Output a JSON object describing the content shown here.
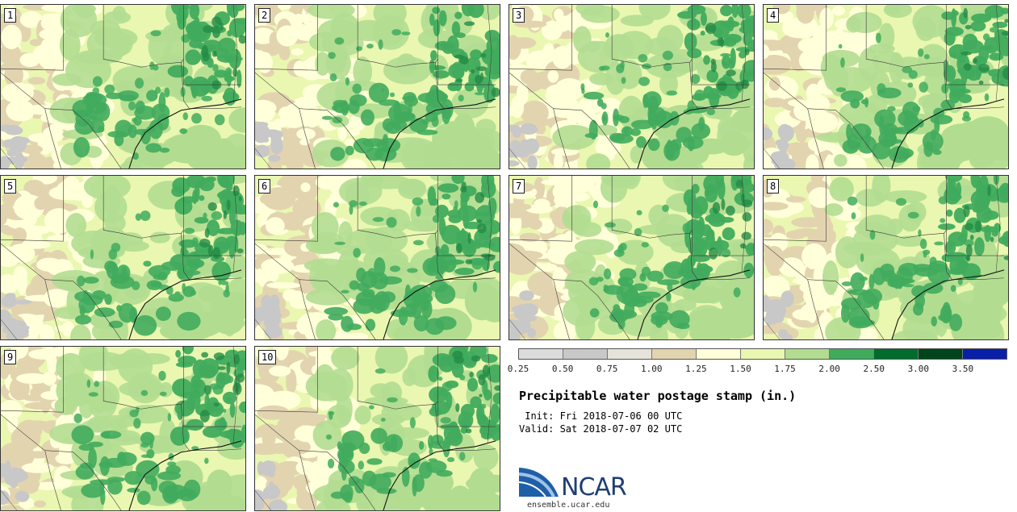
{
  "title": "Precipitable water postage stamp (in.)",
  "init_text": " Init: Fri 2018-07-06 00 UTC",
  "valid_text": "Valid: Sat 2018-07-07 02 UTC",
  "logo": {
    "name": "NCAR",
    "url": "ensemble.ucar.edu"
  },
  "members": [
    "1",
    "2",
    "3",
    "4",
    "5",
    "6",
    "7",
    "8",
    "9",
    "10"
  ],
  "legend": {
    "ticks": [
      "0.25",
      "0.50",
      "0.75",
      "1.00",
      "1.25",
      "1.50",
      "1.75",
      "2.00",
      "2.50",
      "3.00",
      "3.50"
    ],
    "colors": [
      "#dcdcdc",
      "#c8c8c8",
      "#e6e3da",
      "#e3d4b0",
      "#ffffd9",
      "#eaf7b1",
      "#b2dd91",
      "#41ab5d",
      "#006d2c",
      "#00441b",
      "#0a1fa8"
    ]
  },
  "map_colors": {
    "gray": "#c8c8c8",
    "tan": "#e3d4b0",
    "cream": "#ffffd9",
    "lightgreen": "#eaf7b1",
    "green": "#b2dd91",
    "medgreen": "#41ab5d",
    "darkgreen": "#238b45"
  }
}
